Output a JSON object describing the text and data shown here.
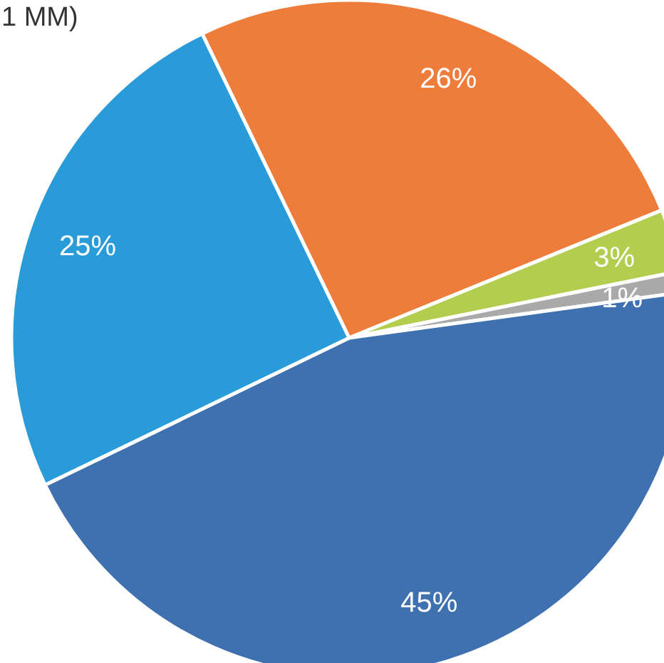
{
  "chart_data": {
    "type": "pie",
    "title": "1 MM)",
    "categories": [
      null,
      null,
      null,
      null,
      null
    ],
    "values": [
      26,
      3,
      1,
      45,
      25
    ],
    "colors": [
      "#ee7d3b",
      "#b3cd4e",
      "#a9a9a9",
      "#3f70b0",
      "#2a9bd9"
    ],
    "value_labels": [
      "26%",
      "3%",
      "1%",
      "45%",
      "25%"
    ]
  }
}
